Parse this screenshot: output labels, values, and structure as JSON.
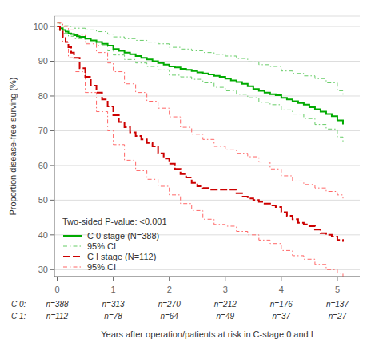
{
  "chart_data": {
    "type": "step",
    "ylabel": "Proportion disease-free surving (%)",
    "xlabel": "Years after operation/patients at risk in C-stage 0 and I",
    "ylim": [
      28,
      103
    ],
    "xlim": [
      -0.05,
      5.4
    ],
    "yticks": [
      30,
      40,
      50,
      60,
      70,
      80,
      90,
      100
    ],
    "xticks": [
      0,
      1,
      2,
      3,
      4,
      5
    ],
    "grid": true,
    "legend": "lower left",
    "annotation": "Two-sided P-value: <0.001",
    "risk_table": {
      "times": [
        0,
        1,
        2,
        3,
        4,
        5
      ],
      "rows": [
        {
          "label": "C 0:",
          "values": [
            "n=388",
            "n=313",
            "n=270",
            "n=212",
            "n=176",
            "n=137"
          ]
        },
        {
          "label": "C 1:",
          "values": [
            "n=112",
            "n=78",
            "n=64",
            "n=49",
            "n=37",
            "n=27"
          ]
        }
      ]
    },
    "series": [
      {
        "name": "C 0 stage (N=388)",
        "color": "#00AA00",
        "line_style": "solid",
        "x": [
          0,
          0.05,
          0.1,
          0.15,
          0.2,
          0.25,
          0.3,
          0.35,
          0.4,
          0.5,
          0.6,
          0.7,
          0.8,
          0.9,
          1.0,
          1.1,
          1.2,
          1.3,
          1.4,
          1.5,
          1.6,
          1.7,
          1.8,
          1.9,
          2.0,
          2.1,
          2.2,
          2.3,
          2.4,
          2.5,
          2.6,
          2.7,
          2.8,
          2.9,
          3.0,
          3.1,
          3.2,
          3.3,
          3.4,
          3.5,
          3.6,
          3.7,
          3.8,
          3.9,
          4.0,
          4.1,
          4.2,
          4.3,
          4.4,
          4.5,
          4.6,
          4.7,
          4.8,
          4.9,
          5.0,
          5.1
        ],
        "values": [
          100,
          99.5,
          99.0,
          98.5,
          98.0,
          97.8,
          97.5,
          97.2,
          97.0,
          96.5,
          96.0,
          95.5,
          95.0,
          94.5,
          93.5,
          93.0,
          92.5,
          92.0,
          91.5,
          91.0,
          90.5,
          90.0,
          89.5,
          89.0,
          88.5,
          88.2,
          87.8,
          87.5,
          87.2,
          86.8,
          86.5,
          86.2,
          85.8,
          85.5,
          85.0,
          84.5,
          84.0,
          83.5,
          82.8,
          82.0,
          81.5,
          81.0,
          80.5,
          80.2,
          79.5,
          79.0,
          78.5,
          78.0,
          77.5,
          76.8,
          76.2,
          75.5,
          74.8,
          74.2,
          73.0,
          71.8
        ]
      },
      {
        "name": "95% CI",
        "color": "#66CC66",
        "line_style": "dashdot",
        "x": [
          0,
          0.05,
          0.1,
          0.2,
          0.3,
          0.5,
          0.7,
          0.9,
          1.0,
          1.2,
          1.4,
          1.6,
          1.8,
          2.0,
          2.2,
          2.4,
          2.6,
          2.8,
          3.0,
          3.2,
          3.4,
          3.6,
          3.8,
          4.0,
          4.2,
          4.4,
          4.6,
          4.8,
          5.0,
          5.1
        ],
        "upper": [
          101,
          100.5,
          100.2,
          100.0,
          99.5,
          99.0,
          98.5,
          97.8,
          97.0,
          96.5,
          96.0,
          95.5,
          95.0,
          94.0,
          93.5,
          93.0,
          92.5,
          92.0,
          91.5,
          90.8,
          89.8,
          89.0,
          88.5,
          87.2,
          86.5,
          85.8,
          85.0,
          83.8,
          81.5,
          80.0
        ],
        "lower": [
          99,
          98.5,
          98.0,
          97.2,
          96.5,
          95.5,
          94.5,
          93.0,
          91.8,
          90.5,
          89.5,
          88.5,
          87.5,
          86.0,
          85.5,
          84.8,
          83.8,
          82.5,
          81.5,
          80.5,
          79.5,
          78.2,
          77.5,
          76.0,
          74.8,
          73.5,
          71.8,
          70.5,
          68.2,
          66.5
        ]
      },
      {
        "name": "C I stage (N=112)",
        "color": "#CC0000",
        "line_style": "dashed",
        "x": [
          0,
          0.05,
          0.1,
          0.15,
          0.2,
          0.25,
          0.3,
          0.4,
          0.5,
          0.6,
          0.7,
          0.8,
          0.9,
          1.0,
          1.1,
          1.2,
          1.3,
          1.4,
          1.5,
          1.6,
          1.7,
          1.8,
          1.9,
          2.0,
          2.1,
          2.2,
          2.3,
          2.4,
          2.5,
          2.6,
          2.7,
          2.8,
          2.9,
          3.0,
          3.1,
          3.2,
          3.3,
          3.4,
          3.5,
          3.6,
          3.7,
          3.8,
          3.9,
          4.0,
          4.1,
          4.2,
          4.3,
          4.4,
          4.5,
          4.6,
          4.7,
          4.8,
          4.9,
          5.0,
          5.1
        ],
        "values": [
          100,
          98.5,
          97.0,
          95.5,
          94.0,
          92.5,
          91.0,
          88.0,
          85.5,
          83.0,
          81.0,
          79.0,
          77.0,
          74.5,
          72.5,
          71.0,
          69.5,
          68.5,
          67.5,
          66.5,
          65.5,
          63.5,
          62.0,
          60.5,
          59.0,
          57.5,
          56.5,
          55.0,
          54.0,
          53.5,
          53.0,
          53.0,
          53.0,
          53.0,
          53.0,
          52.0,
          51.0,
          50.5,
          50.0,
          49.5,
          49.0,
          48.5,
          48.0,
          46.5,
          45.5,
          44.5,
          43.5,
          43.0,
          42.5,
          41.5,
          40.5,
          40.0,
          39.5,
          38.5,
          38.0
        ]
      },
      {
        "name": "95% CI",
        "color": "#FF6666",
        "line_style": "dashdot",
        "x": [
          0,
          0.1,
          0.2,
          0.3,
          0.5,
          0.7,
          0.9,
          1.0,
          1.2,
          1.4,
          1.6,
          1.8,
          2.0,
          2.2,
          2.4,
          2.6,
          2.8,
          3.0,
          3.2,
          3.4,
          3.6,
          3.8,
          4.0,
          4.2,
          4.4,
          4.6,
          4.8,
          5.0,
          5.1
        ],
        "upper": [
          101,
          100.0,
          99.0,
          97.5,
          95.0,
          92.5,
          89.5,
          87.0,
          83.5,
          81.0,
          78.5,
          76.5,
          74.0,
          71.0,
          69.0,
          67.5,
          65.5,
          64.5,
          63.5,
          62.5,
          61.0,
          59.0,
          57.0,
          55.5,
          54.5,
          53.5,
          52.5,
          51.5,
          50.5
        ],
        "lower": [
          99,
          95.5,
          91.0,
          87.0,
          81.0,
          75.5,
          70.0,
          66.0,
          61.5,
          58.5,
          56.0,
          54.0,
          51.5,
          49.0,
          47.0,
          44.5,
          43.0,
          42.5,
          41.0,
          40.0,
          38.5,
          37.5,
          35.5,
          34.0,
          33.0,
          31.5,
          30.0,
          29.0,
          28.0
        ]
      }
    ]
  }
}
